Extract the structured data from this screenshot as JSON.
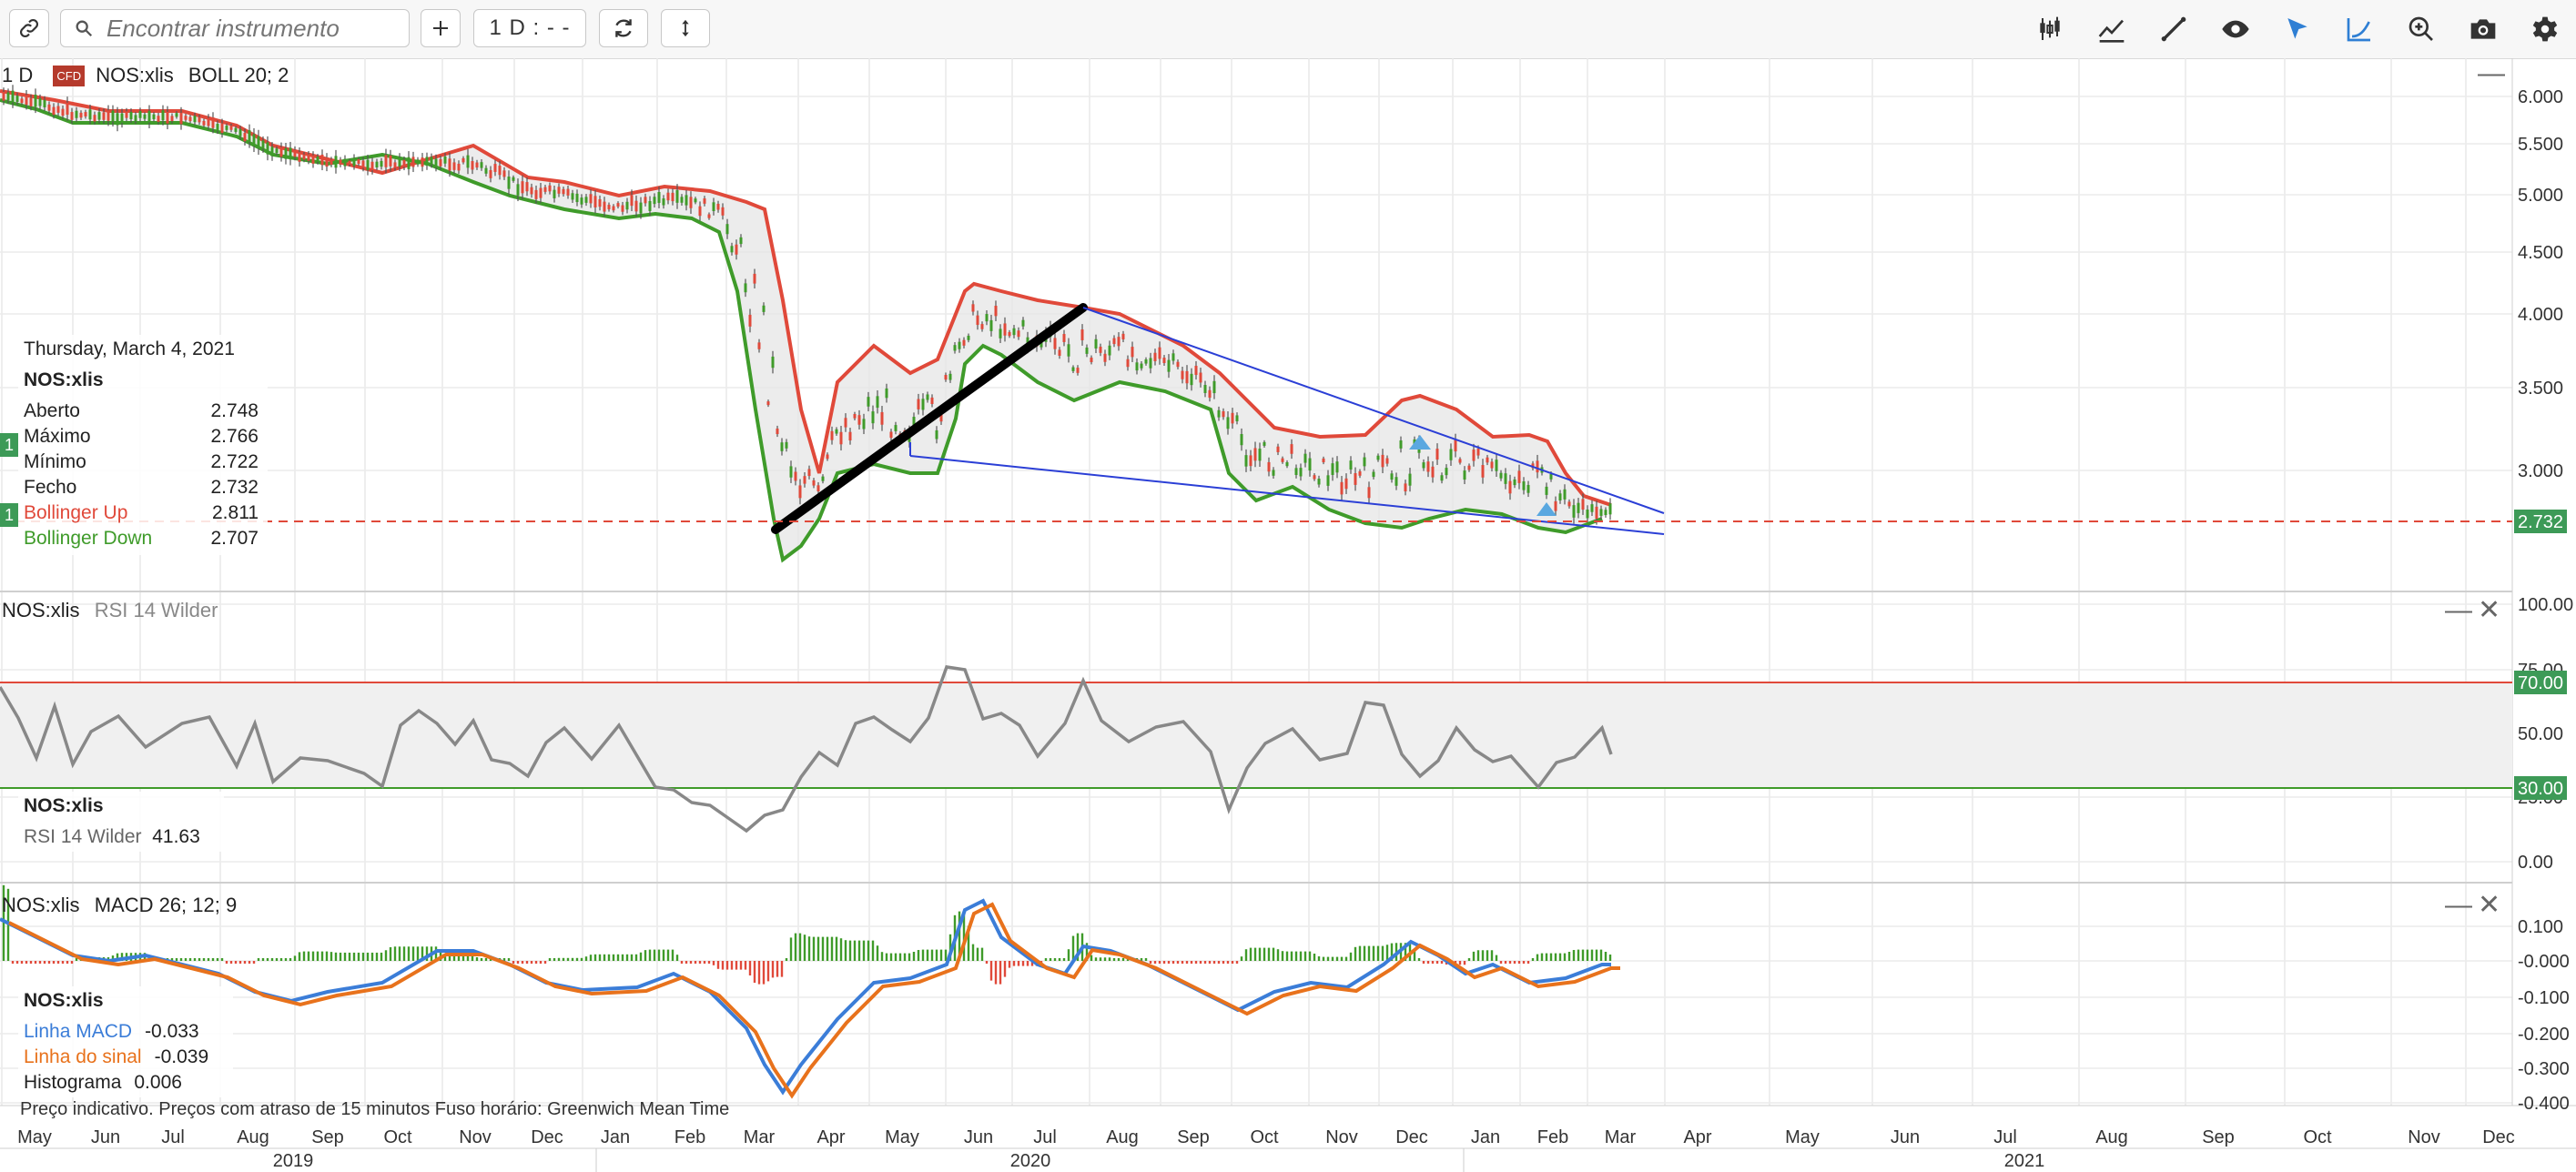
{
  "toolbar": {
    "search_placeholder": "Encontrar instrumento",
    "interval": "1 D : - -",
    "icons": [
      "link-icon",
      "search-icon",
      "plus-icon",
      "refresh-icon",
      "arrows-vertical-icon",
      "candlestick-icon",
      "indicators-icon",
      "draw-line-icon",
      "eye-icon",
      "cursor-icon",
      "curve-icon",
      "zoom-icon",
      "camera-icon",
      "gear-icon"
    ]
  },
  "main_pane": {
    "period": "1 D",
    "cfd_badge": "CFD",
    "instrument": "NOS:xlis",
    "indicator": "BOLL 20; 2",
    "last_price": "2.732",
    "y_ticks": [
      "6.000",
      "5.500",
      "5.000",
      "4.500",
      "4.000",
      "3.500",
      "3.000"
    ],
    "left_markers": [
      "1",
      "1"
    ]
  },
  "info_box": {
    "date": "Thursday, March 4, 2021",
    "instrument": "NOS:xlis",
    "rows": [
      {
        "label": "Aberto",
        "value": "2.748",
        "color": "#222222"
      },
      {
        "label": "Máximo",
        "value": "2.766",
        "color": "#222222"
      },
      {
        "label": "Mínimo",
        "value": "2.722",
        "color": "#222222"
      },
      {
        "label": "Fecho",
        "value": "2.732",
        "color": "#222222"
      },
      {
        "label": "Bollinger Up",
        "value": "2.811",
        "color": "#e0493a"
      },
      {
        "label": "Bollinger Down",
        "value": "2.707",
        "color": "#3f9b2a"
      }
    ]
  },
  "rsi_pane": {
    "instrument": "NOS:xlis",
    "indicator": "RSI 14 Wilder",
    "info_instrument": "NOS:xlis",
    "info_label": "RSI 14 Wilder",
    "info_value": "41.63",
    "y_ticks": [
      "100.00",
      "75.00",
      "50.00",
      "25.00",
      "0.00"
    ],
    "overbought": "70.00",
    "oversold": "30.00"
  },
  "macd_pane": {
    "instrument": "NOS:xlis",
    "indicator": "MACD 26; 12; 9",
    "info_instrument": "NOS:xlis",
    "rows": [
      {
        "label": "Linha MACD",
        "value": "-0.033",
        "color": "#3b7dd8"
      },
      {
        "label": "Linha do sinal",
        "value": "-0.039",
        "color": "#e8721c"
      },
      {
        "label": "Histograma",
        "value": "0.006",
        "color": "#222222"
      }
    ],
    "y_ticks": [
      "0.100",
      "-0.000",
      "-0.100",
      "-0.200",
      "-0.300",
      "-0.400"
    ]
  },
  "footer": {
    "note": "Preço indicativo. Preços com atraso de 15 minutos   Fuso horário: Greenwich Mean Time"
  },
  "x_axis": {
    "months": [
      "May",
      "Jun",
      "Jul",
      "Aug",
      "Sep",
      "Oct",
      "Nov",
      "Dec",
      "Jan",
      "Feb",
      "Mar",
      "Apr",
      "May",
      "Jun",
      "Jul",
      "Aug",
      "Sep",
      "Oct",
      "Nov",
      "Dec",
      "Jan",
      "Feb",
      "Mar",
      "Apr",
      "May",
      "Jun",
      "Jul",
      "Aug",
      "Sep",
      "Oct",
      "Nov",
      "Dec"
    ],
    "years": [
      "2019",
      "2020",
      "2021"
    ]
  },
  "colors": {
    "bollinger_up": "#e0493a",
    "bollinger_down": "#3f9b2a",
    "trend_line": "#2b3fd6",
    "rsi_line": "#888888",
    "macd_line": "#3b7dd8",
    "signal_line": "#e8721c",
    "last_price_badge": "#3d9a57"
  }
}
